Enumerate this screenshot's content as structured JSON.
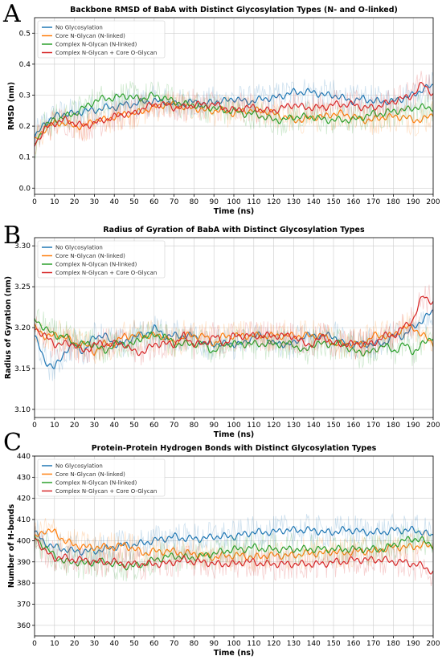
{
  "colors": {
    "series": [
      "#1f77b4",
      "#ff7f0e",
      "#2ca02c",
      "#d62728"
    ],
    "grid": "#cccccc"
  },
  "panel_letters": [
    "A",
    "B",
    "C"
  ],
  "chart_data": [
    {
      "type": "line",
      "title": "Backbone RMSD of BabA with Distinct Glycosylation Types (N- and O-linked)",
      "xlabel": "Time (ns)",
      "ylabel": "RMSD (nm)",
      "xlim": [
        0,
        200
      ],
      "ylim": [
        -0.02,
        0.55
      ],
      "xticks": [
        0,
        10,
        20,
        30,
        40,
        50,
        60,
        70,
        80,
        90,
        100,
        110,
        120,
        130,
        140,
        150,
        160,
        170,
        180,
        190,
        200
      ],
      "yticks": [
        0.0,
        0.1,
        0.2,
        0.3,
        0.4,
        0.5
      ],
      "grid": true,
      "legend_position": "top-left",
      "x": [
        0,
        5,
        10,
        15,
        20,
        25,
        30,
        35,
        40,
        45,
        50,
        55,
        60,
        65,
        70,
        75,
        80,
        85,
        90,
        95,
        100,
        105,
        110,
        115,
        120,
        125,
        130,
        135,
        140,
        145,
        150,
        155,
        160,
        165,
        170,
        175,
        180,
        185,
        190,
        195,
        200
      ],
      "series": [
        {
          "name": "No Glycosylation",
          "values": [
            0.16,
            0.21,
            0.23,
            0.24,
            0.24,
            0.25,
            0.25,
            0.26,
            0.26,
            0.27,
            0.27,
            0.28,
            0.28,
            0.28,
            0.27,
            0.27,
            0.28,
            0.27,
            0.28,
            0.28,
            0.29,
            0.28,
            0.28,
            0.29,
            0.29,
            0.3,
            0.31,
            0.31,
            0.31,
            0.3,
            0.3,
            0.29,
            0.28,
            0.29,
            0.28,
            0.28,
            0.28,
            0.29,
            0.3,
            0.32,
            0.33
          ]
        },
        {
          "name": "Core N-Glycan (N-linked)",
          "values": [
            0.15,
            0.19,
            0.21,
            0.21,
            0.2,
            0.2,
            0.22,
            0.22,
            0.23,
            0.24,
            0.24,
            0.25,
            0.26,
            0.27,
            0.27,
            0.26,
            0.26,
            0.25,
            0.25,
            0.25,
            0.24,
            0.25,
            0.25,
            0.25,
            0.24,
            0.23,
            0.22,
            0.22,
            0.23,
            0.23,
            0.24,
            0.24,
            0.23,
            0.22,
            0.22,
            0.23,
            0.23,
            0.23,
            0.22,
            0.22,
            0.24
          ]
        },
        {
          "name": "Complex N-Glycan (N-linked)",
          "values": [
            0.14,
            0.2,
            0.22,
            0.23,
            0.24,
            0.26,
            0.28,
            0.29,
            0.29,
            0.3,
            0.29,
            0.29,
            0.3,
            0.29,
            0.28,
            0.27,
            0.27,
            0.26,
            0.26,
            0.25,
            0.25,
            0.24,
            0.24,
            0.23,
            0.22,
            0.22,
            0.23,
            0.23,
            0.23,
            0.22,
            0.22,
            0.22,
            0.22,
            0.23,
            0.24,
            0.24,
            0.25,
            0.25,
            0.26,
            0.26,
            0.26
          ]
        },
        {
          "name": "Complex N-Glycan + Core O-Glycan",
          "values": [
            0.14,
            0.19,
            0.21,
            0.22,
            0.21,
            0.2,
            0.21,
            0.22,
            0.23,
            0.24,
            0.24,
            0.26,
            0.27,
            0.27,
            0.26,
            0.26,
            0.27,
            0.27,
            0.27,
            0.26,
            0.25,
            0.26,
            0.26,
            0.25,
            0.25,
            0.26,
            0.27,
            0.26,
            0.26,
            0.26,
            0.27,
            0.27,
            0.27,
            0.26,
            0.26,
            0.27,
            0.28,
            0.29,
            0.3,
            0.34,
            0.3
          ]
        }
      ]
    },
    {
      "type": "line",
      "title": "Radius of Gyration of BabA with Distinct Glycosylation Types",
      "xlabel": "Time (ns)",
      "ylabel": "Radius of Gyration (nm)",
      "xlim": [
        0,
        200
      ],
      "ylim": [
        3.09,
        3.31
      ],
      "xticks": [
        0,
        10,
        20,
        30,
        40,
        50,
        60,
        70,
        80,
        90,
        100,
        110,
        120,
        130,
        140,
        150,
        160,
        170,
        180,
        190,
        200
      ],
      "yticks": [
        3.1,
        3.15,
        3.2,
        3.25,
        3.3
      ],
      "grid": true,
      "legend_position": "top-left",
      "x": [
        0,
        5,
        10,
        15,
        20,
        25,
        30,
        35,
        40,
        45,
        50,
        55,
        60,
        65,
        70,
        75,
        80,
        85,
        90,
        95,
        100,
        105,
        110,
        115,
        120,
        125,
        130,
        135,
        140,
        145,
        150,
        155,
        160,
        165,
        170,
        175,
        180,
        185,
        190,
        195,
        200
      ],
      "series": [
        {
          "name": "No Glycosylation",
          "values": [
            3.19,
            3.16,
            3.15,
            3.17,
            3.18,
            3.17,
            3.19,
            3.19,
            3.18,
            3.18,
            3.19,
            3.19,
            3.2,
            3.19,
            3.19,
            3.19,
            3.19,
            3.18,
            3.18,
            3.18,
            3.18,
            3.18,
            3.19,
            3.19,
            3.18,
            3.18,
            3.18,
            3.19,
            3.19,
            3.19,
            3.19,
            3.18,
            3.18,
            3.18,
            3.18,
            3.18,
            3.19,
            3.19,
            3.2,
            3.21,
            3.22
          ]
        },
        {
          "name": "Core N-Glycan (N-linked)",
          "values": [
            3.2,
            3.19,
            3.19,
            3.19,
            3.18,
            3.18,
            3.17,
            3.18,
            3.18,
            3.19,
            3.19,
            3.19,
            3.19,
            3.19,
            3.18,
            3.19,
            3.19,
            3.19,
            3.18,
            3.19,
            3.19,
            3.19,
            3.19,
            3.19,
            3.19,
            3.19,
            3.19,
            3.19,
            3.19,
            3.19,
            3.18,
            3.18,
            3.18,
            3.18,
            3.19,
            3.19,
            3.19,
            3.2,
            3.2,
            3.19,
            3.18
          ]
        },
        {
          "name": "Complex N-Glycan (N-linked)",
          "values": [
            3.21,
            3.2,
            3.19,
            3.19,
            3.18,
            3.18,
            3.18,
            3.17,
            3.18,
            3.18,
            3.18,
            3.19,
            3.19,
            3.19,
            3.18,
            3.18,
            3.18,
            3.18,
            3.17,
            3.18,
            3.18,
            3.18,
            3.18,
            3.18,
            3.18,
            3.18,
            3.18,
            3.17,
            3.18,
            3.18,
            3.18,
            3.18,
            3.17,
            3.17,
            3.17,
            3.18,
            3.17,
            3.18,
            3.17,
            3.18,
            3.19
          ]
        },
        {
          "name": "Complex N-Glycan + Core O-Glycan",
          "values": [
            3.2,
            3.19,
            3.18,
            3.18,
            3.18,
            3.17,
            3.18,
            3.18,
            3.18,
            3.18,
            3.17,
            3.17,
            3.18,
            3.18,
            3.18,
            3.19,
            3.18,
            3.18,
            3.19,
            3.18,
            3.19,
            3.19,
            3.19,
            3.19,
            3.19,
            3.19,
            3.19,
            3.18,
            3.18,
            3.19,
            3.18,
            3.18,
            3.18,
            3.18,
            3.18,
            3.19,
            3.19,
            3.2,
            3.21,
            3.24,
            3.23
          ]
        }
      ]
    },
    {
      "type": "line",
      "title": "Protein-Protein Hydrogen Bonds with Distinct Glycosylation Types",
      "xlabel": "Time (ns)",
      "ylabel": "Number of H-bonds",
      "xlim": [
        0,
        200
      ],
      "ylim": [
        355,
        440
      ],
      "xticks": [
        0,
        10,
        20,
        30,
        40,
        50,
        60,
        70,
        80,
        90,
        100,
        110,
        120,
        130,
        140,
        150,
        160,
        170,
        180,
        190,
        200
      ],
      "yticks": [
        360,
        370,
        380,
        390,
        400,
        410,
        420,
        430,
        440
      ],
      "grid": true,
      "legend_position": "top-left",
      "x": [
        0,
        5,
        10,
        15,
        20,
        25,
        30,
        35,
        40,
        45,
        50,
        55,
        60,
        65,
        70,
        75,
        80,
        85,
        90,
        95,
        100,
        105,
        110,
        115,
        120,
        125,
        130,
        135,
        140,
        145,
        150,
        155,
        160,
        165,
        170,
        175,
        180,
        185,
        190,
        195,
        200
      ],
      "series": [
        {
          "name": "No Glycosylation",
          "values": [
            404,
            399,
            397,
            396,
            395,
            395,
            395,
            396,
            397,
            398,
            398,
            399,
            400,
            401,
            402,
            401,
            401,
            401,
            402,
            402,
            402,
            403,
            404,
            404,
            404,
            405,
            405,
            405,
            405,
            404,
            404,
            405,
            405,
            404,
            404,
            404,
            405,
            405,
            405,
            404,
            402
          ]
        },
        {
          "name": "Core N-Glycan (N-linked)",
          "values": [
            401,
            405,
            404,
            400,
            398,
            397,
            397,
            397,
            397,
            398,
            396,
            394,
            395,
            395,
            395,
            394,
            394,
            393,
            392,
            393,
            393,
            393,
            392,
            393,
            393,
            393,
            393,
            394,
            394,
            394,
            395,
            394,
            395,
            395,
            395,
            396,
            397,
            397,
            397,
            398,
            397
          ]
        },
        {
          "name": "Complex N-Glycan (N-linked)",
          "values": [
            402,
            397,
            393,
            390,
            390,
            389,
            390,
            390,
            389,
            388,
            388,
            389,
            391,
            392,
            393,
            392,
            392,
            393,
            394,
            395,
            396,
            396,
            397,
            396,
            396,
            396,
            396,
            396,
            396,
            396,
            396,
            396,
            396,
            396,
            396,
            396,
            398,
            400,
            401,
            400,
            398
          ]
        },
        {
          "name": "Complex N-Glycan + Core O-Glycan",
          "values": [
            402,
            395,
            392,
            392,
            391,
            391,
            390,
            390,
            390,
            389,
            389,
            389,
            389,
            389,
            390,
            391,
            390,
            390,
            389,
            389,
            389,
            390,
            390,
            389,
            389,
            389,
            389,
            389,
            389,
            389,
            390,
            390,
            391,
            391,
            391,
            391,
            390,
            390,
            389,
            388,
            385
          ]
        }
      ]
    }
  ]
}
